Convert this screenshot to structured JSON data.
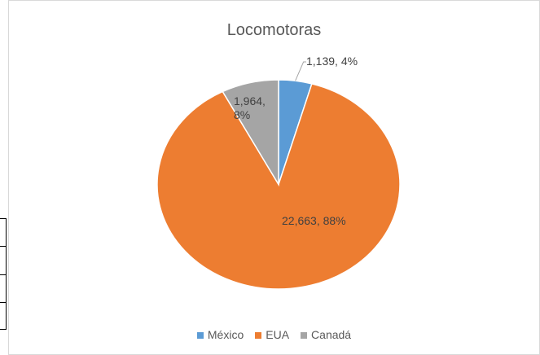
{
  "chart_data": {
    "type": "pie",
    "title": "Locomotoras",
    "categories": [
      "México",
      "EUA",
      "Canadá"
    ],
    "values": [
      1139,
      22663,
      1964
    ],
    "value_labels": [
      "1,139, 4%",
      "22,663, 88%",
      "1,964, 8%"
    ],
    "colors": [
      "#5b9bd5",
      "#ed7d31",
      "#a5a5a5"
    ],
    "legend": "bottom"
  }
}
